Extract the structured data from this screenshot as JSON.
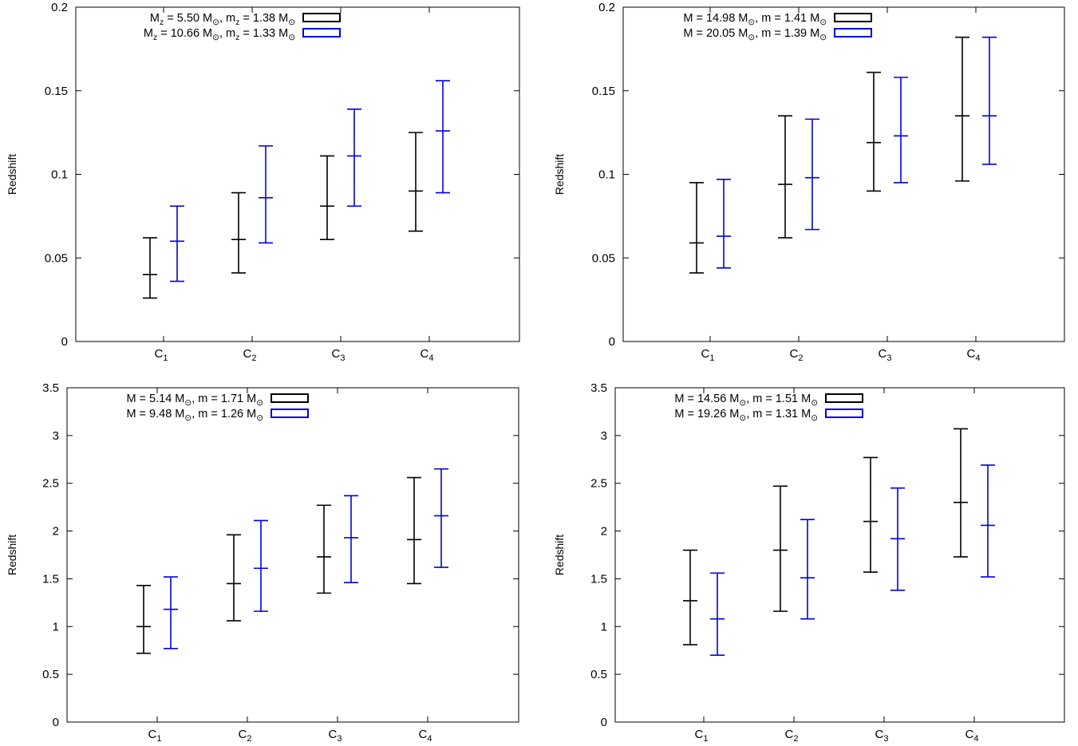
{
  "chart_data": [
    {
      "type": "errorbar",
      "ylabel": "Redshift",
      "categories": [
        {
          "base": "C",
          "sub": "1"
        },
        {
          "base": "C",
          "sub": "2"
        },
        {
          "base": "C",
          "sub": "3"
        },
        {
          "base": "C",
          "sub": "4"
        }
      ],
      "ylim": [
        0,
        0.2
      ],
      "yticks": [
        "0",
        "0.05",
        "0.1",
        "0.15",
        "0.2"
      ],
      "ytick_values": [
        0,
        0.05,
        0.1,
        0.15,
        0.2
      ],
      "legend_position": "top-left",
      "grid": false,
      "series": [
        {
          "color": "#000000",
          "legend": [
            {
              "t": "M"
            },
            {
              "t": "z",
              "sub": true
            },
            {
              "t": " = 5.50 M"
            },
            {
              "t": "⊙",
              "sub": true
            },
            {
              "t": ", m"
            },
            {
              "t": "z",
              "sub": true
            },
            {
              "t": " = 1.38 M"
            },
            {
              "t": "⊙",
              "sub": true
            }
          ],
          "points": [
            [
              0.026,
              0.04,
              0.062
            ],
            [
              0.041,
              0.061,
              0.089
            ],
            [
              0.061,
              0.081,
              0.111
            ],
            [
              0.066,
              0.09,
              0.125
            ]
          ]
        },
        {
          "color": "#0000dd",
          "legend": [
            {
              "t": "M"
            },
            {
              "t": "z",
              "sub": true
            },
            {
              "t": " = 10.66 M"
            },
            {
              "t": "⊙",
              "sub": true
            },
            {
              "t": ", m"
            },
            {
              "t": "z",
              "sub": true
            },
            {
              "t": " = 1.33 M"
            },
            {
              "t": "⊙",
              "sub": true
            }
          ],
          "points": [
            [
              0.036,
              0.06,
              0.081
            ],
            [
              0.059,
              0.086,
              0.117
            ],
            [
              0.081,
              0.111,
              0.139
            ],
            [
              0.089,
              0.126,
              0.156
            ]
          ]
        }
      ]
    },
    {
      "type": "errorbar",
      "ylabel": "Redshift",
      "categories": [
        {
          "base": "C",
          "sub": "1"
        },
        {
          "base": "C",
          "sub": "2"
        },
        {
          "base": "C",
          "sub": "3"
        },
        {
          "base": "C",
          "sub": "4"
        }
      ],
      "ylim": [
        0,
        0.2
      ],
      "yticks": [
        "0",
        "0.05",
        "0.1",
        "0.15",
        "0.2"
      ],
      "ytick_values": [
        0,
        0.05,
        0.1,
        0.15,
        0.2
      ],
      "legend_position": "top-left",
      "grid": false,
      "series": [
        {
          "color": "#000000",
          "legend": [
            {
              "t": "M = 14.98 M"
            },
            {
              "t": "⊙",
              "sub": true
            },
            {
              "t": ", m = 1.41 M"
            },
            {
              "t": "⊙",
              "sub": true
            }
          ],
          "points": [
            [
              0.041,
              0.059,
              0.095
            ],
            [
              0.062,
              0.094,
              0.135
            ],
            [
              0.09,
              0.119,
              0.161
            ],
            [
              0.096,
              0.135,
              0.182
            ]
          ]
        },
        {
          "color": "#0000dd",
          "legend": [
            {
              "t": "M = 20.05 M"
            },
            {
              "t": "⊙",
              "sub": true
            },
            {
              "t": ", m = 1.39 M"
            },
            {
              "t": "⊙",
              "sub": true
            }
          ],
          "points": [
            [
              0.044,
              0.063,
              0.097
            ],
            [
              0.067,
              0.098,
              0.133
            ],
            [
              0.095,
              0.123,
              0.158
            ],
            [
              0.106,
              0.135,
              0.182
            ]
          ]
        }
      ]
    },
    {
      "type": "errorbar",
      "ylabel": "Redshift",
      "categories": [
        {
          "base": "C",
          "sub": "1"
        },
        {
          "base": "C",
          "sub": "2"
        },
        {
          "base": "C",
          "sub": "3"
        },
        {
          "base": "C",
          "sub": "4"
        }
      ],
      "ylim": [
        0,
        3.5
      ],
      "yticks": [
        "0",
        "0.5",
        "1",
        "1.5",
        "2",
        "2.5",
        "3",
        "3.5"
      ],
      "ytick_values": [
        0,
        0.5,
        1,
        1.5,
        2,
        2.5,
        3,
        3.5
      ],
      "legend_position": "top-left",
      "grid": false,
      "series": [
        {
          "color": "#000000",
          "legend": [
            {
              "t": "M = 5.14 M"
            },
            {
              "t": "⊙",
              "sub": true
            },
            {
              "t": ", m = 1.71 M"
            },
            {
              "t": "⊙",
              "sub": true
            }
          ],
          "points": [
            [
              0.72,
              1.0,
              1.43
            ],
            [
              1.06,
              1.45,
              1.96
            ],
            [
              1.35,
              1.73,
              2.27
            ],
            [
              1.45,
              1.91,
              2.56
            ]
          ]
        },
        {
          "color": "#0000dd",
          "legend": [
            {
              "t": "M = 9.48 M"
            },
            {
              "t": "⊙",
              "sub": true
            },
            {
              "t": ", m = 1.26 M"
            },
            {
              "t": "⊙",
              "sub": true
            }
          ],
          "points": [
            [
              0.77,
              1.18,
              1.52
            ],
            [
              1.16,
              1.61,
              2.11
            ],
            [
              1.46,
              1.93,
              2.37
            ],
            [
              1.62,
              2.16,
              2.65
            ]
          ]
        }
      ]
    },
    {
      "type": "errorbar",
      "ylabel": "Redshift",
      "categories": [
        {
          "base": "C",
          "sub": "1"
        },
        {
          "base": "C",
          "sub": "2"
        },
        {
          "base": "C",
          "sub": "3"
        },
        {
          "base": "C",
          "sub": "4"
        }
      ],
      "ylim": [
        0,
        3.5
      ],
      "yticks": [
        "0",
        "0.5",
        "1",
        "1.5",
        "2",
        "2.5",
        "3",
        "3.5"
      ],
      "ytick_values": [
        0,
        0.5,
        1,
        1.5,
        2,
        2.5,
        3,
        3.5
      ],
      "legend_position": "top-left",
      "grid": false,
      "series": [
        {
          "color": "#000000",
          "legend": [
            {
              "t": "M = 14.56 M"
            },
            {
              "t": "⊙",
              "sub": true
            },
            {
              "t": ", m = 1.51 M"
            },
            {
              "t": "⊙",
              "sub": true
            }
          ],
          "points": [
            [
              0.81,
              1.27,
              1.8
            ],
            [
              1.16,
              1.8,
              2.47
            ],
            [
              1.57,
              2.1,
              2.77
            ],
            [
              1.73,
              2.3,
              3.07
            ]
          ]
        },
        {
          "color": "#0000dd",
          "legend": [
            {
              "t": "M = 19.26 M"
            },
            {
              "t": "⊙",
              "sub": true
            },
            {
              "t": ", m = 1.31 M"
            },
            {
              "t": "⊙",
              "sub": true
            }
          ],
          "points": [
            [
              0.7,
              1.08,
              1.56
            ],
            [
              1.08,
              1.51,
              2.12
            ],
            [
              1.38,
              1.92,
              2.45
            ],
            [
              1.52,
              2.06,
              2.69
            ]
          ]
        }
      ]
    }
  ]
}
